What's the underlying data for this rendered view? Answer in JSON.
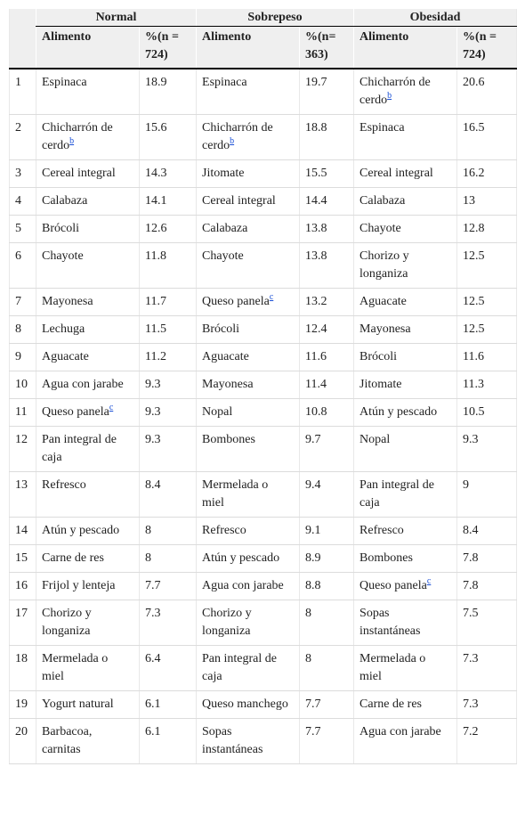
{
  "header": {
    "groups": [
      "Normal",
      "Sobrepeso",
      "Obesidad"
    ],
    "columns": [
      [
        "Alimento",
        "%(n = 724)"
      ],
      [
        "Alimento",
        "%(n= 363)"
      ],
      [
        "Alimento",
        "%(n = 724)"
      ]
    ]
  },
  "rows": [
    {
      "rank": "1",
      "cells": [
        {
          "food": "Espinaca",
          "pct": "18.9"
        },
        {
          "food": "Espinaca",
          "pct": "19.7"
        },
        {
          "food": "Chicharrón de cerdo",
          "note": "b",
          "pct": "20.6"
        }
      ]
    },
    {
      "rank": "2",
      "cells": [
        {
          "food": "Chicharrón de cerdo",
          "note": "b",
          "pct": "15.6"
        },
        {
          "food": "Chicharrón de cerdo",
          "note": "b",
          "pct": "18.8"
        },
        {
          "food": "Espinaca",
          "pct": "16.5"
        }
      ]
    },
    {
      "rank": "3",
      "cells": [
        {
          "food": "Cereal integral",
          "pct": "14.3"
        },
        {
          "food": "Jitomate",
          "pct": "15.5"
        },
        {
          "food": "Cereal integral",
          "pct": "16.2"
        }
      ]
    },
    {
      "rank": "4",
      "cells": [
        {
          "food": "Calabaza",
          "pct": "14.1"
        },
        {
          "food": "Cereal integral",
          "pct": "14.4"
        },
        {
          "food": "Calabaza",
          "pct": "13"
        }
      ]
    },
    {
      "rank": "5",
      "cells": [
        {
          "food": "Brócoli",
          "pct": "12.6"
        },
        {
          "food": "Calabaza",
          "pct": "13.8"
        },
        {
          "food": "Chayote",
          "pct": "12.8"
        }
      ]
    },
    {
      "rank": "6",
      "cells": [
        {
          "food": "Chayote",
          "pct": "11.8"
        },
        {
          "food": "Chayote",
          "pct": "13.8"
        },
        {
          "food": "Chorizo y longaniza",
          "pct": "12.5"
        }
      ]
    },
    {
      "rank": "7",
      "cells": [
        {
          "food": "Mayonesa",
          "pct": "11.7"
        },
        {
          "food": "Queso panela",
          "note": "c",
          "pct": "13.2"
        },
        {
          "food": "Aguacate",
          "pct": "12.5"
        }
      ]
    },
    {
      "rank": "8",
      "cells": [
        {
          "food": "Lechuga",
          "pct": "11.5"
        },
        {
          "food": "Brócoli",
          "pct": "12.4"
        },
        {
          "food": "Mayonesa",
          "pct": "12.5"
        }
      ]
    },
    {
      "rank": "9",
      "cells": [
        {
          "food": "Aguacate",
          "pct": "11.2"
        },
        {
          "food": "Aguacate",
          "pct": "11.6"
        },
        {
          "food": "Brócoli",
          "pct": "11.6"
        }
      ]
    },
    {
      "rank": "10",
      "cells": [
        {
          "food": "Agua con jarabe",
          "pct": "9.3"
        },
        {
          "food": "Mayonesa",
          "pct": "11.4"
        },
        {
          "food": "Jitomate",
          "pct": "11.3"
        }
      ]
    },
    {
      "rank": "11",
      "cells": [
        {
          "food": "Queso panela",
          "note": "c",
          "pct": "9.3"
        },
        {
          "food": "Nopal",
          "pct": "10.8"
        },
        {
          "food": "Atún y pescado",
          "pct": "10.5"
        }
      ]
    },
    {
      "rank": "12",
      "cells": [
        {
          "food": "Pan integral de caja",
          "pct": "9.3"
        },
        {
          "food": "Bombones",
          "pct": "9.7"
        },
        {
          "food": "Nopal",
          "pct": "9.3"
        }
      ]
    },
    {
      "rank": "13",
      "cells": [
        {
          "food": "Refresco",
          "pct": "8.4"
        },
        {
          "food": "Mermelada o miel",
          "pct": "9.4"
        },
        {
          "food": "Pan integral de caja",
          "pct": "9"
        }
      ]
    },
    {
      "rank": "14",
      "cells": [
        {
          "food": "Atún y pescado",
          "pct": "8"
        },
        {
          "food": "Refresco",
          "pct": "9.1"
        },
        {
          "food": "Refresco",
          "pct": "8.4"
        }
      ]
    },
    {
      "rank": "15",
      "cells": [
        {
          "food": "Carne de res",
          "pct": "8"
        },
        {
          "food": "Atún y pescado",
          "pct": "8.9"
        },
        {
          "food": "Bombones",
          "pct": "7.8"
        }
      ]
    },
    {
      "rank": "16",
      "cells": [
        {
          "food": "Frijol y lenteja",
          "pct": "7.7"
        },
        {
          "food": "Agua con jarabe",
          "pct": "8.8"
        },
        {
          "food": "Queso panela",
          "note": "c",
          "pct": "7.8"
        }
      ]
    },
    {
      "rank": "17",
      "cells": [
        {
          "food": "Chorizo y longaniza",
          "pct": "7.3"
        },
        {
          "food": "Chorizo y longaniza",
          "pct": "8"
        },
        {
          "food": "Sopas instantáneas",
          "pct": "7.5"
        }
      ]
    },
    {
      "rank": "18",
      "cells": [
        {
          "food": "Mermelada o miel",
          "pct": "6.4"
        },
        {
          "food": "Pan integral de caja",
          "pct": "8"
        },
        {
          "food": "Mermelada o miel",
          "pct": "7.3"
        }
      ]
    },
    {
      "rank": "19",
      "cells": [
        {
          "food": "Yogurt natural",
          "pct": "6.1"
        },
        {
          "food": "Queso manchego",
          "pct": "7.7"
        },
        {
          "food": "Carne de res",
          "pct": "7.3"
        }
      ]
    },
    {
      "rank": "20",
      "cells": [
        {
          "food": "Barbacoa, carnitas",
          "pct": "6.1"
        },
        {
          "food": "Sopas instantáneas",
          "pct": "7.7"
        },
        {
          "food": "Agua con jarabe",
          "pct": "7.2"
        }
      ]
    }
  ]
}
